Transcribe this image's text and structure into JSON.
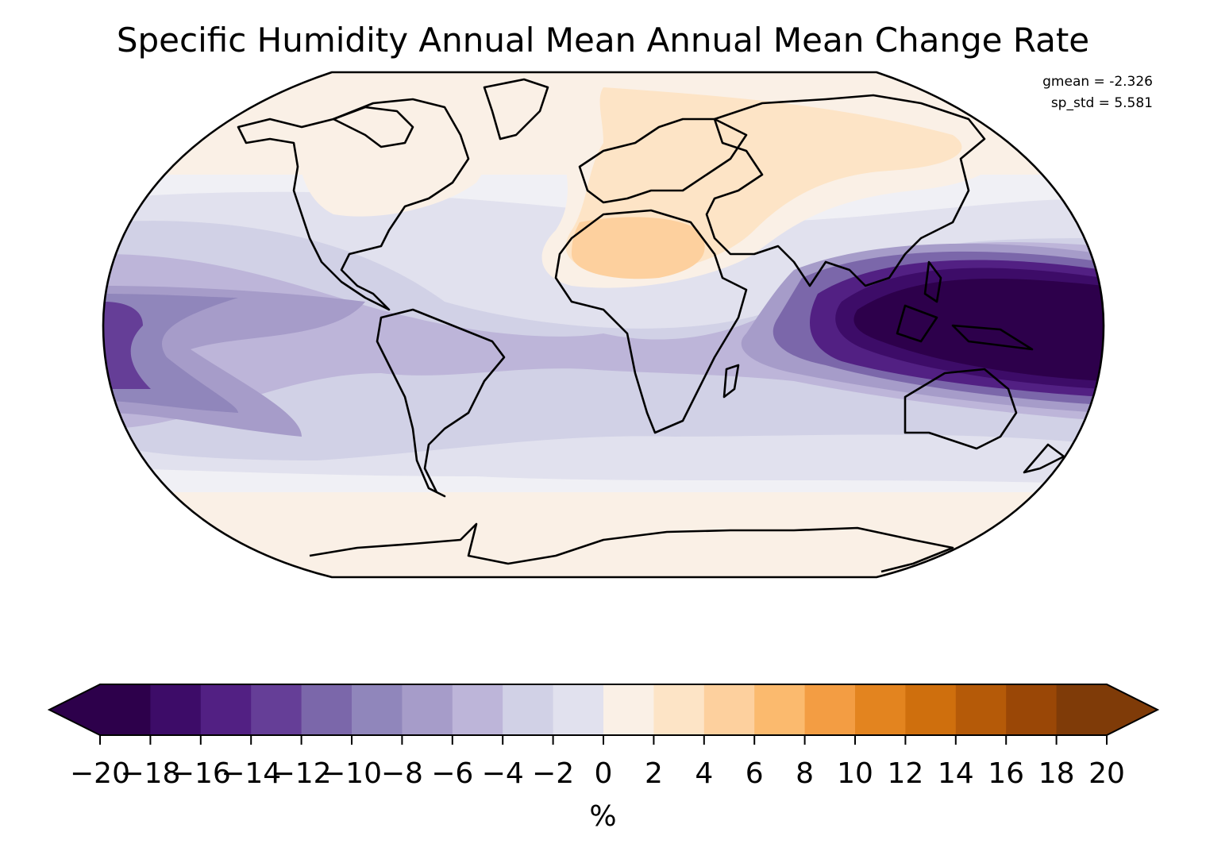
{
  "title": "Specific Humidity Annual Mean Annual Mean Change Rate",
  "stats": {
    "gmean": "gmean = -2.326",
    "sp_std": "sp_std = 5.581"
  },
  "colorbar": {
    "unit": "%",
    "ticks": [
      "−20",
      "−18",
      "−16",
      "−14",
      "−12",
      "−10",
      "−8",
      "−6",
      "−4",
      "−2",
      "0",
      "2",
      "4",
      "6",
      "8",
      "10",
      "12",
      "14",
      "16",
      "18",
      "20"
    ],
    "colors": [
      "#2d004b",
      "#3d0c68",
      "#522083",
      "#653e97",
      "#7b67aa",
      "#9086bb",
      "#a69cc9",
      "#bdb5d9",
      "#d1d1e6",
      "#e1e1ee",
      "#f0f0f5",
      "#faf0e6",
      "#fde4c6",
      "#fdd09e",
      "#fbba6e",
      "#f39d43",
      "#e3841f",
      "#cf6f0d",
      "#b55a08",
      "#9a4706",
      "#7f3b08"
    ],
    "over_color": "#7f3b08",
    "under_color": "#2d004b"
  },
  "map": {
    "projection": "Robinson",
    "field": "specific humidity annual mean change rate (%)",
    "palette": "PuOr diverging"
  }
}
